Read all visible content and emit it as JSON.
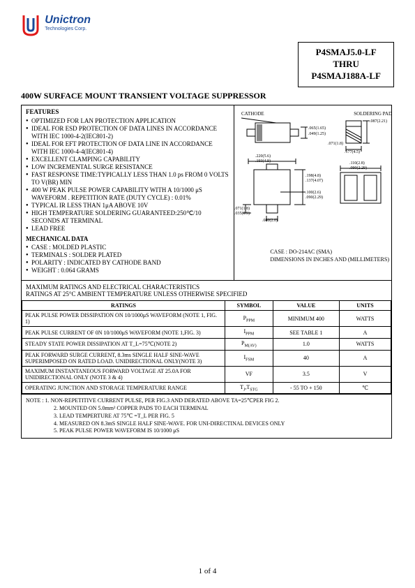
{
  "logo": {
    "name": "Unictron",
    "subtitle": "Technologies Corp."
  },
  "part_box": {
    "line1": "P4SMAJ5.0-LF",
    "line2": "THRU",
    "line3": "P4SMAJ188A-LF"
  },
  "title": "400W SURFACE MOUNT TRANSIENT VOLTAGE SUPPRESSOR",
  "features_head": "FEATURES",
  "features": [
    "OPTIMIZED FOR LAN PROTECTION APPLICATION",
    "IDEAL FOR ESD PROTECTION OF DATA LINES IN ACCORDANCE WITH IEC 1000-4-2(IEC801-2)",
    "IDEAL FOR EFT PROTECTION OF DATA LINE IN ACCORDANCE WITH IEC 1000-4-4(IEC801-4)",
    "EXCELLENT CLAMPING CAPABILITY",
    "LOW INCREMENTAL SURGE RESISTANCE",
    "FAST RESPONSE TIME:TYPICALLY LESS THAN 1.0 ps FROM 0 VOLTS TO V(BR) MIN",
    "400 W PEAK PULSE POWER CAPABILITY WITH A 10/1000 μS WAVEFORM . REPETITION RATE (DUTY CYCLE) : 0.01%",
    "TYPICAL IR LESS THAN 1μA ABOVE 10V",
    "HIGH TEMPERATURE SOLDERING GUARANTEED:250℃/10 SECONDS AT TERMINAL",
    "LEAD FREE"
  ],
  "mech_head": "MECHANICAL DATA",
  "mech": [
    "CASE : MOLDED PLASTIC",
    "TERMINALS : SOLDER PLATED",
    "POLARITY : INDICATED BY CATHODE BAND",
    "WEIGHT : 0.064 GRAMS"
  ],
  "diagram": {
    "cathode": "CATHODE",
    "soldering_pad": "SOLDERING PAD",
    "dims": [
      ".065(1.65)",
      ".049(1.25)",
      ".087(2.21)",
      ".220(5.6)",
      ".193(4.9)",
      ".071(1.8)",
      ".198(4.8)",
      ".137(4.07)",
      ".110(2.8)",
      ".090(2.29)",
      ".100(2.6)",
      ".090(2.29)",
      ".071(1.8)",
      ".035(0.9)",
      ".080(2.0)",
      ".177(4.5)"
    ],
    "case_note": "CASE : DO-214AC (SMA)",
    "dim_note": "DIMENSIONS IN INCHES AND (MILLIMETERS)"
  },
  "ratings_intro1": "MAXIMUM RATINGS AND ELECTRICAL CHARACTERISTICS",
  "ratings_intro2": "RATINGS AT 25°C AMBIENT TEMPERATURE UNLESS OTHERWISE SPECIFIED",
  "ratings_table": {
    "headers": [
      "RATINGS",
      "SYMBOL",
      "VALUE",
      "UNITS"
    ],
    "col_widths": [
      "55%",
      "13%",
      "18%",
      "14%"
    ],
    "rows": [
      [
        "PEAK PULSE POWER DISSIPATION ON 10/1000μS WAVEFORM (NOTE 1, FIG. 1)",
        "P_PPM",
        "MINIMUM 400",
        "WATTS"
      ],
      [
        "PEAK PULSE CURRENT OF 0N 10/1000μS WAVEFORM (NOTE 1,FIG. 3)",
        "I_PPM",
        "SEE TABLE 1",
        "A"
      ],
      [
        "STEADY STATE POWER DISSIPATION AT T_L=75℃(NOTE 2)",
        "P_M(AV)",
        "1.0",
        "WATTS"
      ],
      [
        "PEAK FORWARD SURGE CURRENT, 8.3ms SINGLE HALF SINE-WAVE SUPERIMPOSED ON RATED LOAD. UNIDIRECTIONAL ONLY(NOTE 3)",
        "I_FSM",
        "40",
        "A"
      ],
      [
        "MAXIMUM INSTANTANEOUS FORWARD VOLTAGE AT 25.0A FOR UNIDIRECTIONAL ONLY (NOTE 3 & 4)",
        "VF",
        "3.5",
        "V"
      ],
      [
        "OPERATING JUNCTION AND STORAGE TEMPERATURE RANGE",
        "T_J,T_STG",
        "- 55 TO + 150",
        "℃"
      ]
    ]
  },
  "notes_label": "NOTE :",
  "notes": [
    "1. NON-REPETITIVE CURRENT PULSE, PER FIG.3 AND DERATED ABOVE TA=25℃PER FIG 2.",
    "2. MOUNTED ON 5.0mm² COPPER PADS TO EACH TERMINAL",
    "3. LEAD TEMPERTURE AT 75℃ =T_L PER FIG. 5",
    "4. MEASURED ON 8.3mS SINGLE HALF SINE-WAVE. FOR UNI-DIRECTINAL DEVICES ONLY",
    "5. PEAK PULSE POWER WAVEFORM IS 10/1000 μS"
  ],
  "page": "1 of 4"
}
